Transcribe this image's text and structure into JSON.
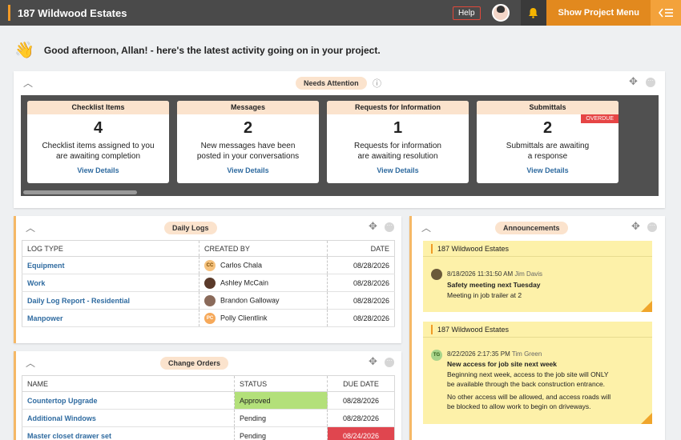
{
  "header": {
    "project_title": "187 Wildwood Estates",
    "help_label": "Help",
    "show_menu_label": "Show Project Menu",
    "bell_icon": "bell-icon",
    "menu_icon": "collapse-menu-icon",
    "accent_color": "#e2891e"
  },
  "greeting": {
    "text": "Good afternoon, Allan! - here's the latest activity going on in your project."
  },
  "needs_attention": {
    "label": "Needs Attention",
    "cards": [
      {
        "title": "Checklist Items",
        "count": "4",
        "line1": "Checklist items assigned to you",
        "line2": "are awaiting completion",
        "link": "View Details"
      },
      {
        "title": "Messages",
        "count": "2",
        "line1": "New messages have been",
        "line2": "posted in your conversations",
        "link": "View Details"
      },
      {
        "title": "Requests for Information",
        "count": "1",
        "line1": "Requests for information",
        "line2": "are awaiting resolution",
        "link": "View Details"
      },
      {
        "title": "Submittals",
        "count": "2",
        "line1": "Submittals are awaiting",
        "line2": "a response",
        "link": "View Details",
        "badge": "OVERDUE"
      }
    ]
  },
  "daily_logs": {
    "label": "Daily Logs",
    "columns": [
      "LOG TYPE",
      "CREATED BY",
      "DATE"
    ],
    "rows": [
      {
        "type": "Equipment",
        "initials": "CC",
        "by": "Carlos Chala",
        "date": "08/28/2026"
      },
      {
        "type": "Work",
        "initials": "",
        "by": "Ashley McCain",
        "date": "08/28/2026"
      },
      {
        "type": "Daily Log Report - Residential",
        "initials": "",
        "by": "Brandon Galloway",
        "date": "08/28/2026"
      },
      {
        "type": "Manpower",
        "initials": "PC",
        "by": "Polly Clientlink",
        "date": "08/28/2026"
      }
    ]
  },
  "change_orders": {
    "label": "Change Orders",
    "columns": [
      "NAME",
      "STATUS",
      "DUE DATE"
    ],
    "rows": [
      {
        "name": "Countertop Upgrade",
        "status": "Approved",
        "due": "08/28/2026"
      },
      {
        "name": "Additional Windows",
        "status": "Pending",
        "due": "08/28/2026"
      },
      {
        "name": "Master closet drawer set",
        "status": "Pending",
        "due": "08/24/2026"
      }
    ]
  },
  "announcements": {
    "label": "Announcements",
    "items": [
      {
        "project": "187 Wildwood Estates",
        "timestamp": "8/18/2026 11:31:50 AM",
        "author": "Jim Davis",
        "initials": "",
        "subject": "Safety meeting next Tuesday",
        "body": [
          "Meeting in job trailer at 2"
        ]
      },
      {
        "project": "187 Wildwood Estates",
        "timestamp": "8/22/2026 2:17:35 PM",
        "author": "Tim Green",
        "initials": "TG",
        "subject": "New access for job site next week",
        "body": [
          "Beginning next week, access to the job site will ONLY",
          "be available through the back construction entrance.",
          "No other access will be allowed, and access roads will",
          "be blocked to allow work to begin on driveways."
        ]
      }
    ]
  },
  "icons": {
    "info": "ⓘ",
    "move": "⤧",
    "more": "•••",
    "collapse": "^"
  }
}
